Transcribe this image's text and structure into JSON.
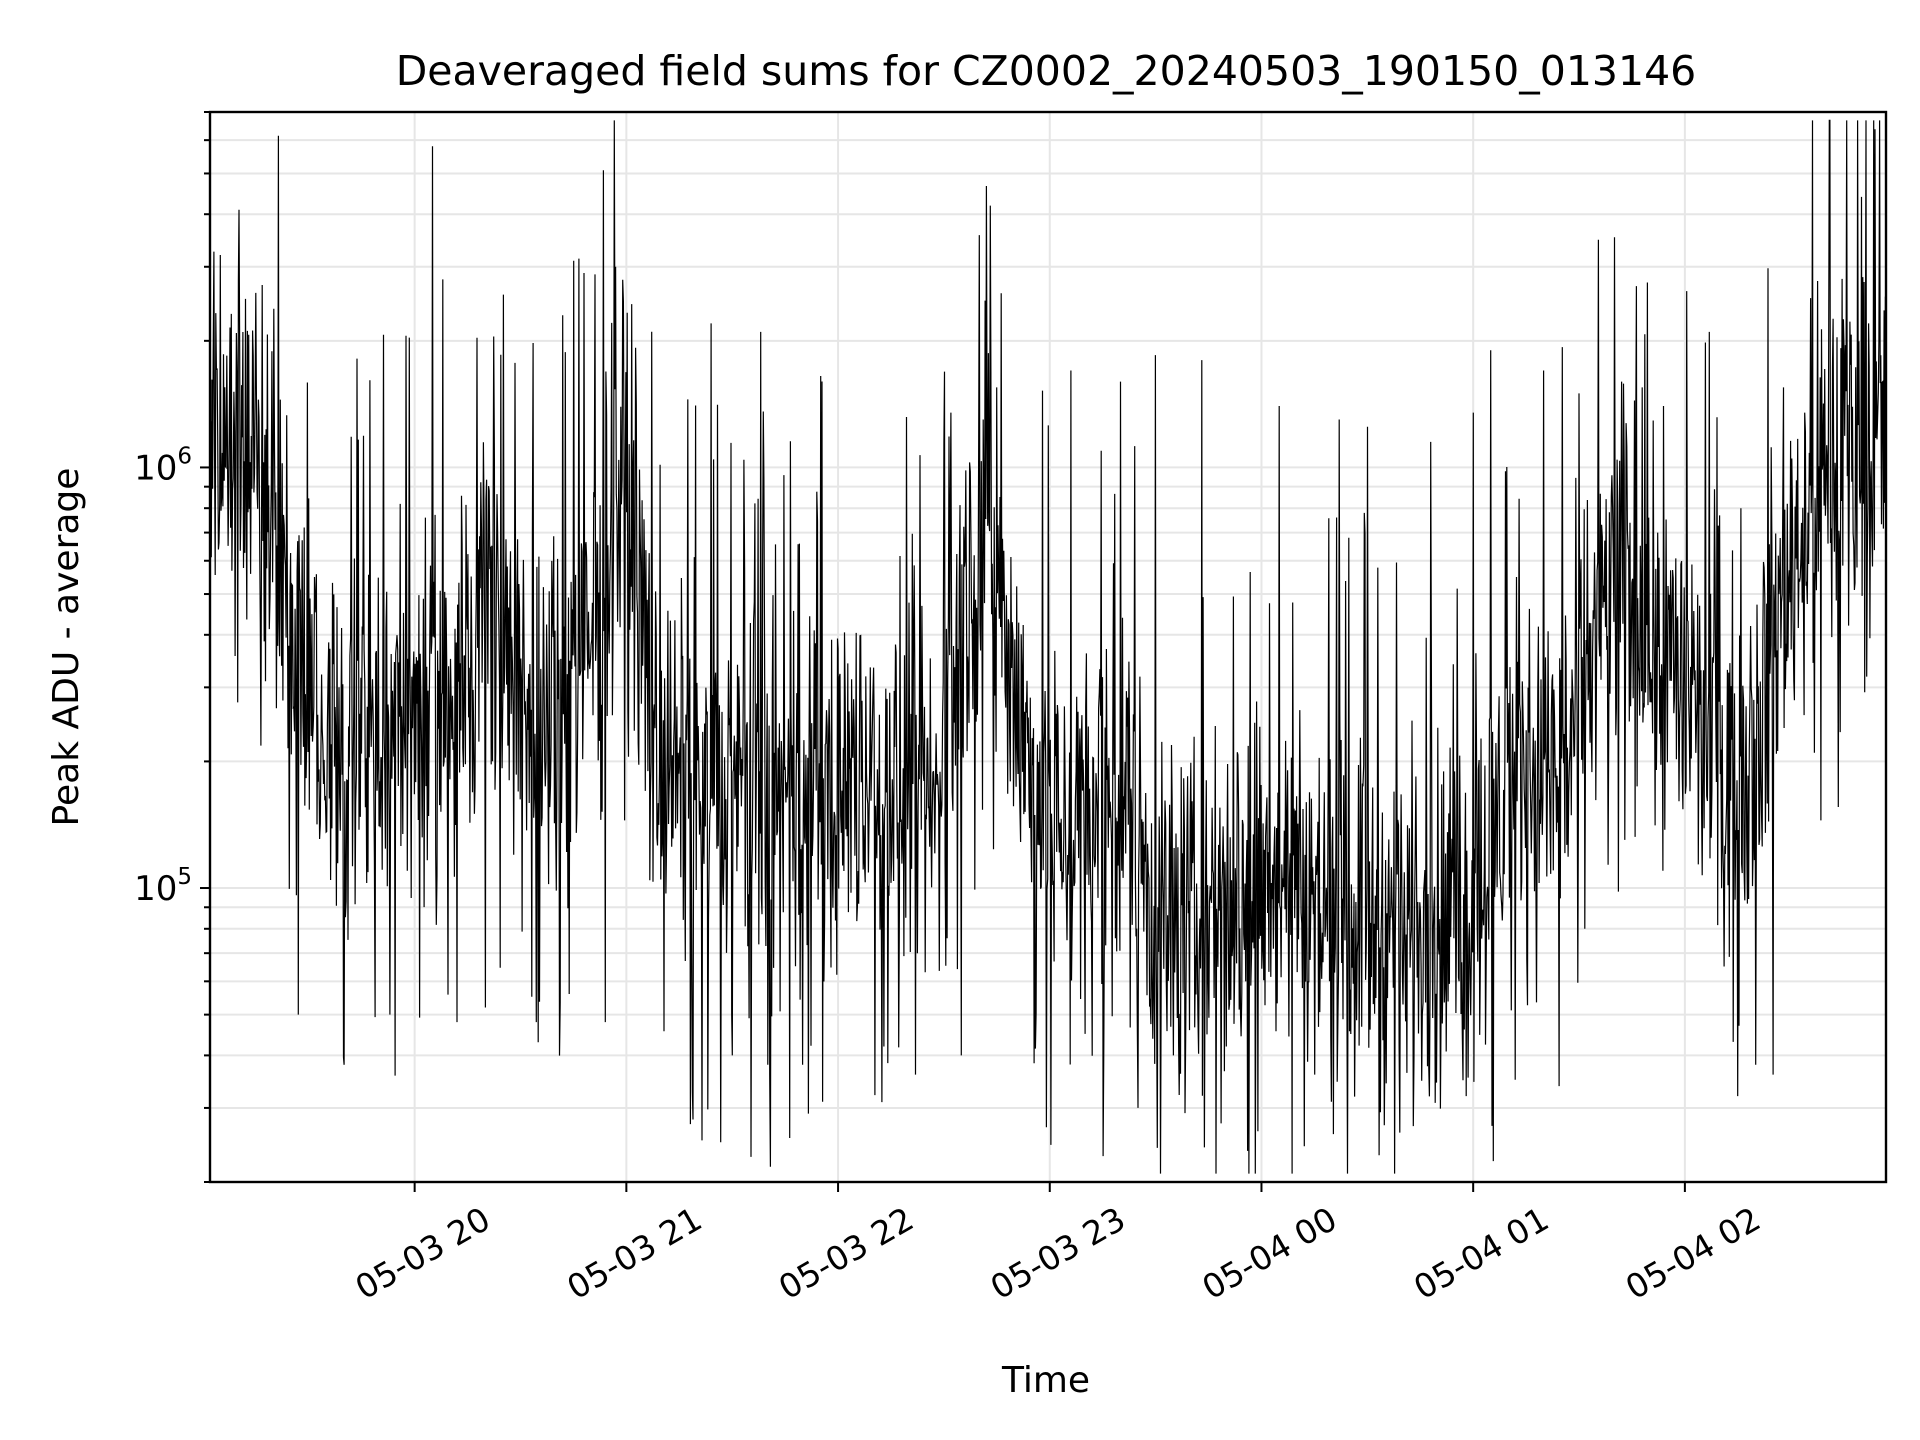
{
  "chart_data": {
    "type": "line",
    "title": "Deaveraged field sums for CZ0002_20240503_190150_013146",
    "xlabel": "Time",
    "ylabel": "Peak ADU - average",
    "y_scale": "log",
    "ylim": [
      20000,
      7000000
    ],
    "xlim": [
      "2024-05-03 19:02",
      "2024-05-04 02:57"
    ],
    "x_ticks": [
      {
        "time": "2024-05-03 20:00",
        "label": "05-03 20"
      },
      {
        "time": "2024-05-03 21:00",
        "label": "05-03 21"
      },
      {
        "time": "2024-05-03 22:00",
        "label": "05-03 22"
      },
      {
        "time": "2024-05-03 23:00",
        "label": "05-03 23"
      },
      {
        "time": "2024-05-04 00:00",
        "label": "05-04 00"
      },
      {
        "time": "2024-05-04 01:00",
        "label": "05-04 01"
      },
      {
        "time": "2024-05-04 02:00",
        "label": "05-04 02"
      }
    ],
    "y_ticks": [
      {
        "value": 100000,
        "base": "10",
        "exp": "5"
      },
      {
        "value": 1000000,
        "base": "10",
        "exp": "6"
      }
    ],
    "grid": true,
    "line_color": "#000000",
    "grid_color": "#e6e6e6",
    "series": [
      {
        "points": [
          [
            "2024-05-03 19:02",
            900000
          ],
          [
            "2024-05-03 19:05",
            1300000
          ],
          [
            "2024-05-03 19:08",
            1100000
          ],
          [
            "2024-05-03 19:12",
            1250000
          ],
          [
            "2024-05-03 19:15",
            1050000
          ],
          [
            "2024-05-03 19:18",
            900000
          ],
          [
            "2024-05-03 19:21",
            700000
          ],
          [
            "2024-05-03 19:24",
            550000
          ],
          [
            "2024-05-03 19:27",
            400000
          ],
          [
            "2024-05-03 19:30",
            280000
          ],
          [
            "2024-05-03 19:35",
            230000
          ],
          [
            "2024-05-03 19:40",
            210000
          ],
          [
            "2024-05-03 19:45",
            200000
          ],
          [
            "2024-05-03 19:50",
            220000
          ],
          [
            "2024-05-03 19:55",
            240000
          ],
          [
            "2024-05-03 20:00",
            260000
          ],
          [
            "2024-05-03 20:05",
            280000
          ],
          [
            "2024-05-03 20:10",
            300000
          ],
          [
            "2024-05-03 20:15",
            350000
          ],
          [
            "2024-05-03 20:20",
            550000
          ],
          [
            "2024-05-03 20:25",
            420000
          ],
          [
            "2024-05-03 20:30",
            260000
          ],
          [
            "2024-05-03 20:35",
            230000
          ],
          [
            "2024-05-03 20:40",
            250000
          ],
          [
            "2024-05-03 20:45",
            300000
          ],
          [
            "2024-05-03 20:50",
            350000
          ],
          [
            "2024-05-03 20:54",
            600000
          ],
          [
            "2024-05-03 20:57",
            1100000
          ],
          [
            "2024-05-03 21:00",
            1000000
          ],
          [
            "2024-05-03 21:03",
            650000
          ],
          [
            "2024-05-03 21:06",
            300000
          ],
          [
            "2024-05-03 21:10",
            200000
          ],
          [
            "2024-05-03 21:20",
            170000
          ],
          [
            "2024-05-03 21:30",
            160000
          ],
          [
            "2024-05-03 21:40",
            150000
          ],
          [
            "2024-05-03 21:50",
            150000
          ],
          [
            "2024-05-03 22:00",
            170000
          ],
          [
            "2024-05-03 22:10",
            200000
          ],
          [
            "2024-05-03 22:20",
            170000
          ],
          [
            "2024-05-03 22:28",
            150000
          ],
          [
            "2024-05-03 22:35",
            450000
          ],
          [
            "2024-05-03 22:40",
            700000
          ],
          [
            "2024-05-03 22:45",
            550000
          ],
          [
            "2024-05-03 22:50",
            300000
          ],
          [
            "2024-05-03 22:55",
            180000
          ],
          [
            "2024-05-03 23:00",
            150000
          ],
          [
            "2024-05-03 23:10",
            140000
          ],
          [
            "2024-05-03 23:20",
            170000
          ],
          [
            "2024-05-03 23:25",
            140000
          ],
          [
            "2024-05-03 23:30",
            90000
          ],
          [
            "2024-05-03 23:40",
            80000
          ],
          [
            "2024-05-03 23:50",
            90000
          ],
          [
            "2024-05-04 00:00",
            110000
          ],
          [
            "2024-05-04 00:10",
            100000
          ],
          [
            "2024-05-04 00:20",
            90000
          ],
          [
            "2024-05-04 00:30",
            85000
          ],
          [
            "2024-05-04 00:40",
            80000
          ],
          [
            "2024-05-04 00:50",
            80000
          ],
          [
            "2024-05-04 01:00",
            95000
          ],
          [
            "2024-05-04 01:05",
            130000
          ],
          [
            "2024-05-04 01:10",
            180000
          ],
          [
            "2024-05-04 01:15",
            200000
          ],
          [
            "2024-05-04 01:20",
            180000
          ],
          [
            "2024-05-04 01:25",
            200000
          ],
          [
            "2024-05-04 01:30",
            250000
          ],
          [
            "2024-05-04 01:35",
            450000
          ],
          [
            "2024-05-04 01:40",
            500000
          ],
          [
            "2024-05-04 01:45",
            550000
          ],
          [
            "2024-05-04 01:50",
            400000
          ],
          [
            "2024-05-04 01:55",
            350000
          ],
          [
            "2024-05-04 02:00",
            300000
          ],
          [
            "2024-05-04 02:05",
            230000
          ],
          [
            "2024-05-04 02:10",
            200000
          ],
          [
            "2024-05-04 02:15",
            190000
          ],
          [
            "2024-05-04 02:20",
            250000
          ],
          [
            "2024-05-04 02:25",
            350000
          ],
          [
            "2024-05-04 02:30",
            600000
          ],
          [
            "2024-05-04 02:35",
            800000
          ],
          [
            "2024-05-04 02:40",
            950000
          ],
          [
            "2024-05-04 02:45",
            1050000
          ],
          [
            "2024-05-04 02:50",
            1100000
          ],
          [
            "2024-05-04 02:57",
            1150000
          ]
        ],
        "spikes": [
          [
            "2024-05-03 19:05",
            3200000
          ],
          [
            "2024-05-03 19:10",
            2800000
          ],
          [
            "2024-05-03 19:15",
            2600000
          ],
          [
            "2024-05-03 19:22",
            1450000
          ],
          [
            "2024-05-03 19:27",
            50000
          ],
          [
            "2024-05-03 19:40",
            38000
          ],
          [
            "2024-05-03 19:53",
            50000
          ],
          [
            "2024-05-03 20:05",
            5800000
          ],
          [
            "2024-05-03 20:08",
            2800000
          ],
          [
            "2024-05-03 20:12",
            48000
          ],
          [
            "2024-05-03 20:20",
            52000
          ],
          [
            "2024-05-03 20:35",
            43000
          ],
          [
            "2024-05-03 20:42",
            2300000
          ],
          [
            "2024-05-03 20:45",
            3100000
          ],
          [
            "2024-05-03 20:48",
            2900000
          ],
          [
            "2024-05-03 20:54",
            48000
          ],
          [
            "2024-05-03 20:57",
            3000000
          ],
          [
            "2024-05-03 21:24",
            2200000
          ],
          [
            "2024-05-03 21:30",
            40000
          ],
          [
            "2024-05-03 21:38",
            2100000
          ],
          [
            "2024-05-03 21:40",
            38000
          ],
          [
            "2024-05-03 21:50",
            38000
          ],
          [
            "2024-05-03 21:55",
            1650000
          ],
          [
            "2024-05-03 22:13",
            42000
          ],
          [
            "2024-05-03 22:22",
            36000
          ],
          [
            "2024-05-03 22:32",
            1350000
          ],
          [
            "2024-05-03 22:35",
            40000
          ],
          [
            "2024-05-03 22:45",
            1550000
          ],
          [
            "2024-05-03 22:59",
            27000
          ],
          [
            "2024-05-03 23:06",
            1700000
          ],
          [
            "2024-05-03 23:10",
            45000
          ],
          [
            "2024-05-03 23:20",
            1600000
          ],
          [
            "2024-05-03 23:25",
            30000
          ],
          [
            "2024-05-03 23:30",
            1850000
          ],
          [
            "2024-05-03 23:35",
            40000
          ],
          [
            "2024-05-03 23:43",
            1800000
          ],
          [
            "2024-05-03 23:50",
            42000
          ],
          [
            "2024-05-04 00:05",
            1400000
          ],
          [
            "2024-05-04 00:15",
            36000
          ],
          [
            "2024-05-04 00:22",
            1300000
          ],
          [
            "2024-05-04 00:30",
            1250000
          ],
          [
            "2024-05-04 00:35",
            42000
          ],
          [
            "2024-05-04 00:48",
            1150000
          ],
          [
            "2024-05-04 00:58",
            32000
          ],
          [
            "2024-05-04 01:00",
            1350000
          ],
          [
            "2024-05-04 01:05",
            1900000
          ],
          [
            "2024-05-04 01:12",
            35000
          ],
          [
            "2024-05-04 01:20",
            1700000
          ],
          [
            "2024-05-04 01:30",
            1500000
          ],
          [
            "2024-05-04 01:42",
            1600000
          ],
          [
            "2024-05-04 01:48",
            1550000
          ],
          [
            "2024-05-04 01:54",
            1400000
          ],
          [
            "2024-05-04 02:07",
            2100000
          ],
          [
            "2024-05-04 02:15",
            32000
          ],
          [
            "2024-05-04 02:20",
            38000
          ],
          [
            "2024-05-04 02:25",
            36000
          ],
          [
            "2024-05-04 02:28",
            1550000
          ],
          [
            "2024-05-04 02:45",
            2250000
          ],
          [
            "2024-05-04 02:52",
            2200000
          ],
          [
            "2024-05-04 02:55",
            2000000
          ]
        ]
      }
    ]
  }
}
